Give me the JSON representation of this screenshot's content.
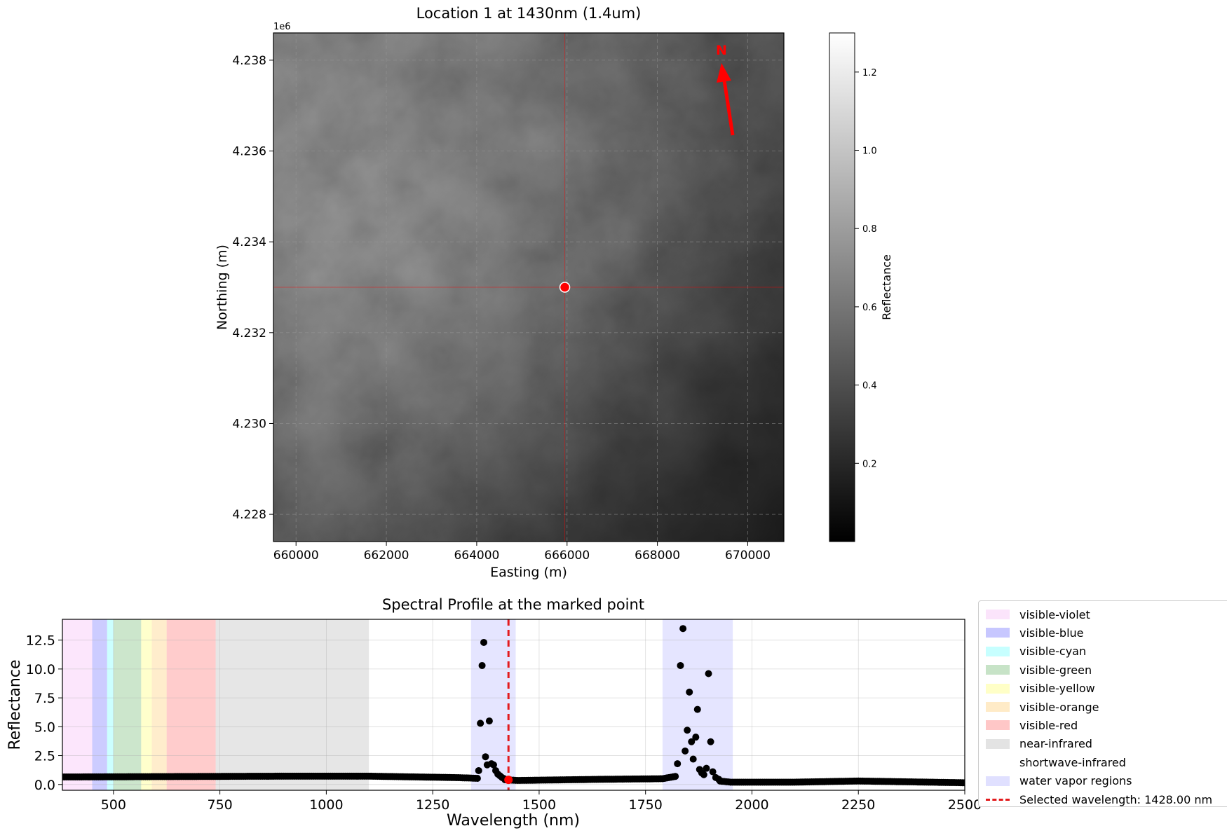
{
  "map": {
    "title": "Location 1 at 1430nm (1.4um)",
    "xlabel": "Easting (m)",
    "ylabel": "Northing (m)",
    "y_offset_label": "1e6",
    "x_ticks": [
      "660000",
      "662000",
      "664000",
      "666000",
      "668000",
      "670000"
    ],
    "y_ticks": [
      "4.238",
      "4.236",
      "4.234",
      "4.232",
      "4.230",
      "4.228"
    ],
    "x_range": [
      659500,
      670800
    ],
    "y_range": [
      4227400,
      4238600
    ],
    "marked_point": {
      "easting": 665950,
      "northing": 4233000
    },
    "north_label": "N",
    "colorbar": {
      "label": "Reflectance",
      "ticks": [
        "0.2",
        "0.4",
        "0.6",
        "0.8",
        "1.0",
        "1.2"
      ],
      "range": [
        0.0,
        1.3
      ]
    },
    "marker_color": "#ff0000"
  },
  "chart_data": {
    "type": "scatter",
    "title": "Spectral Profile at the marked point",
    "xlabel": "Wavelength (nm)",
    "ylabel": "Reflectance",
    "xlim": [
      380,
      2500
    ],
    "ylim": [
      -0.5,
      14.3
    ],
    "x_ticks": [
      "500",
      "750",
      "1000",
      "1250",
      "1500",
      "1750",
      "2000",
      "2250",
      "2500"
    ],
    "y_ticks": [
      "0.0",
      "2.5",
      "5.0",
      "7.5",
      "10.0",
      "12.5"
    ],
    "grid": true,
    "legend_position": "outside-right",
    "regions": [
      {
        "name": "visible-violet",
        "start": 380,
        "end": 450,
        "color": "#ee82ee",
        "alpha": 0.2
      },
      {
        "name": "visible-blue",
        "start": 450,
        "end": 485,
        "color": "#0000ff",
        "alpha": 0.2
      },
      {
        "name": "visible-cyan",
        "start": 485,
        "end": 500,
        "color": "#00ffff",
        "alpha": 0.2
      },
      {
        "name": "visible-green",
        "start": 500,
        "end": 565,
        "color": "#008000",
        "alpha": 0.2
      },
      {
        "name": "visible-yellow",
        "start": 565,
        "end": 590,
        "color": "#ffff00",
        "alpha": 0.2
      },
      {
        "name": "visible-orange",
        "start": 590,
        "end": 625,
        "color": "#ffa500",
        "alpha": 0.2
      },
      {
        "name": "visible-red",
        "start": 625,
        "end": 740,
        "color": "#ff0000",
        "alpha": 0.2
      },
      {
        "name": "near-infrared",
        "start": 740,
        "end": 1100,
        "color": "#808080",
        "alpha": 0.2
      },
      {
        "name": "shortwave-infrared",
        "start": 1100,
        "end": 2500,
        "color": "#ffffff",
        "alpha": 0.0
      },
      {
        "name": "water vapor regions",
        "start": 1340,
        "end": 1445,
        "color": "#0000ff",
        "alpha": 0.1
      },
      {
        "name": "water vapor regions",
        "start": 1790,
        "end": 1955,
        "color": "#0000ff",
        "alpha": 0.1
      }
    ],
    "selected_wavelength": {
      "label": "Selected wavelength: 1428.00 nm",
      "value": 1428,
      "reflectance": 0.4,
      "color": "#e31a1c"
    },
    "peaks": [
      {
        "x": 1358,
        "y": 1.2
      },
      {
        "x": 1362,
        "y": 5.3
      },
      {
        "x": 1366,
        "y": 10.3
      },
      {
        "x": 1370,
        "y": 12.3
      },
      {
        "x": 1374,
        "y": 2.4
      },
      {
        "x": 1378,
        "y": 1.7
      },
      {
        "x": 1383,
        "y": 5.5
      },
      {
        "x": 1388,
        "y": 1.8
      },
      {
        "x": 1393,
        "y": 1.7
      },
      {
        "x": 1398,
        "y": 1.2
      },
      {
        "x": 1403,
        "y": 0.9
      },
      {
        "x": 1408,
        "y": 0.75
      },
      {
        "x": 1413,
        "y": 0.6
      },
      {
        "x": 1418,
        "y": 0.5
      },
      {
        "x": 1825,
        "y": 1.8
      },
      {
        "x": 1832,
        "y": 10.3
      },
      {
        "x": 1838,
        "y": 13.5
      },
      {
        "x": 1843,
        "y": 2.9
      },
      {
        "x": 1848,
        "y": 4.7
      },
      {
        "x": 1853,
        "y": 8.0
      },
      {
        "x": 1858,
        "y": 3.7
      },
      {
        "x": 1862,
        "y": 2.2
      },
      {
        "x": 1868,
        "y": 4.1
      },
      {
        "x": 1872,
        "y": 6.5
      },
      {
        "x": 1877,
        "y": 1.3
      },
      {
        "x": 1882,
        "y": 1.0
      },
      {
        "x": 1887,
        "y": 0.85
      },
      {
        "x": 1893,
        "y": 1.4
      },
      {
        "x": 1898,
        "y": 9.6
      },
      {
        "x": 1903,
        "y": 3.7
      },
      {
        "x": 1908,
        "y": 1.1
      },
      {
        "x": 1915,
        "y": 0.6
      },
      {
        "x": 1922,
        "y": 0.45
      }
    ],
    "baseline": [
      {
        "x": 380,
        "y": 0.65
      },
      {
        "x": 740,
        "y": 0.7
      },
      {
        "x": 900,
        "y": 0.72
      },
      {
        "x": 1100,
        "y": 0.72
      },
      {
        "x": 1300,
        "y": 0.6
      },
      {
        "x": 1345,
        "y": 0.55
      },
      {
        "x": 1450,
        "y": 0.35
      },
      {
        "x": 1650,
        "y": 0.45
      },
      {
        "x": 1790,
        "y": 0.5
      },
      {
        "x": 1820,
        "y": 0.7
      },
      {
        "x": 1950,
        "y": 0.2
      },
      {
        "x": 2100,
        "y": 0.2
      },
      {
        "x": 2250,
        "y": 0.3
      },
      {
        "x": 2500,
        "y": 0.15
      }
    ]
  }
}
